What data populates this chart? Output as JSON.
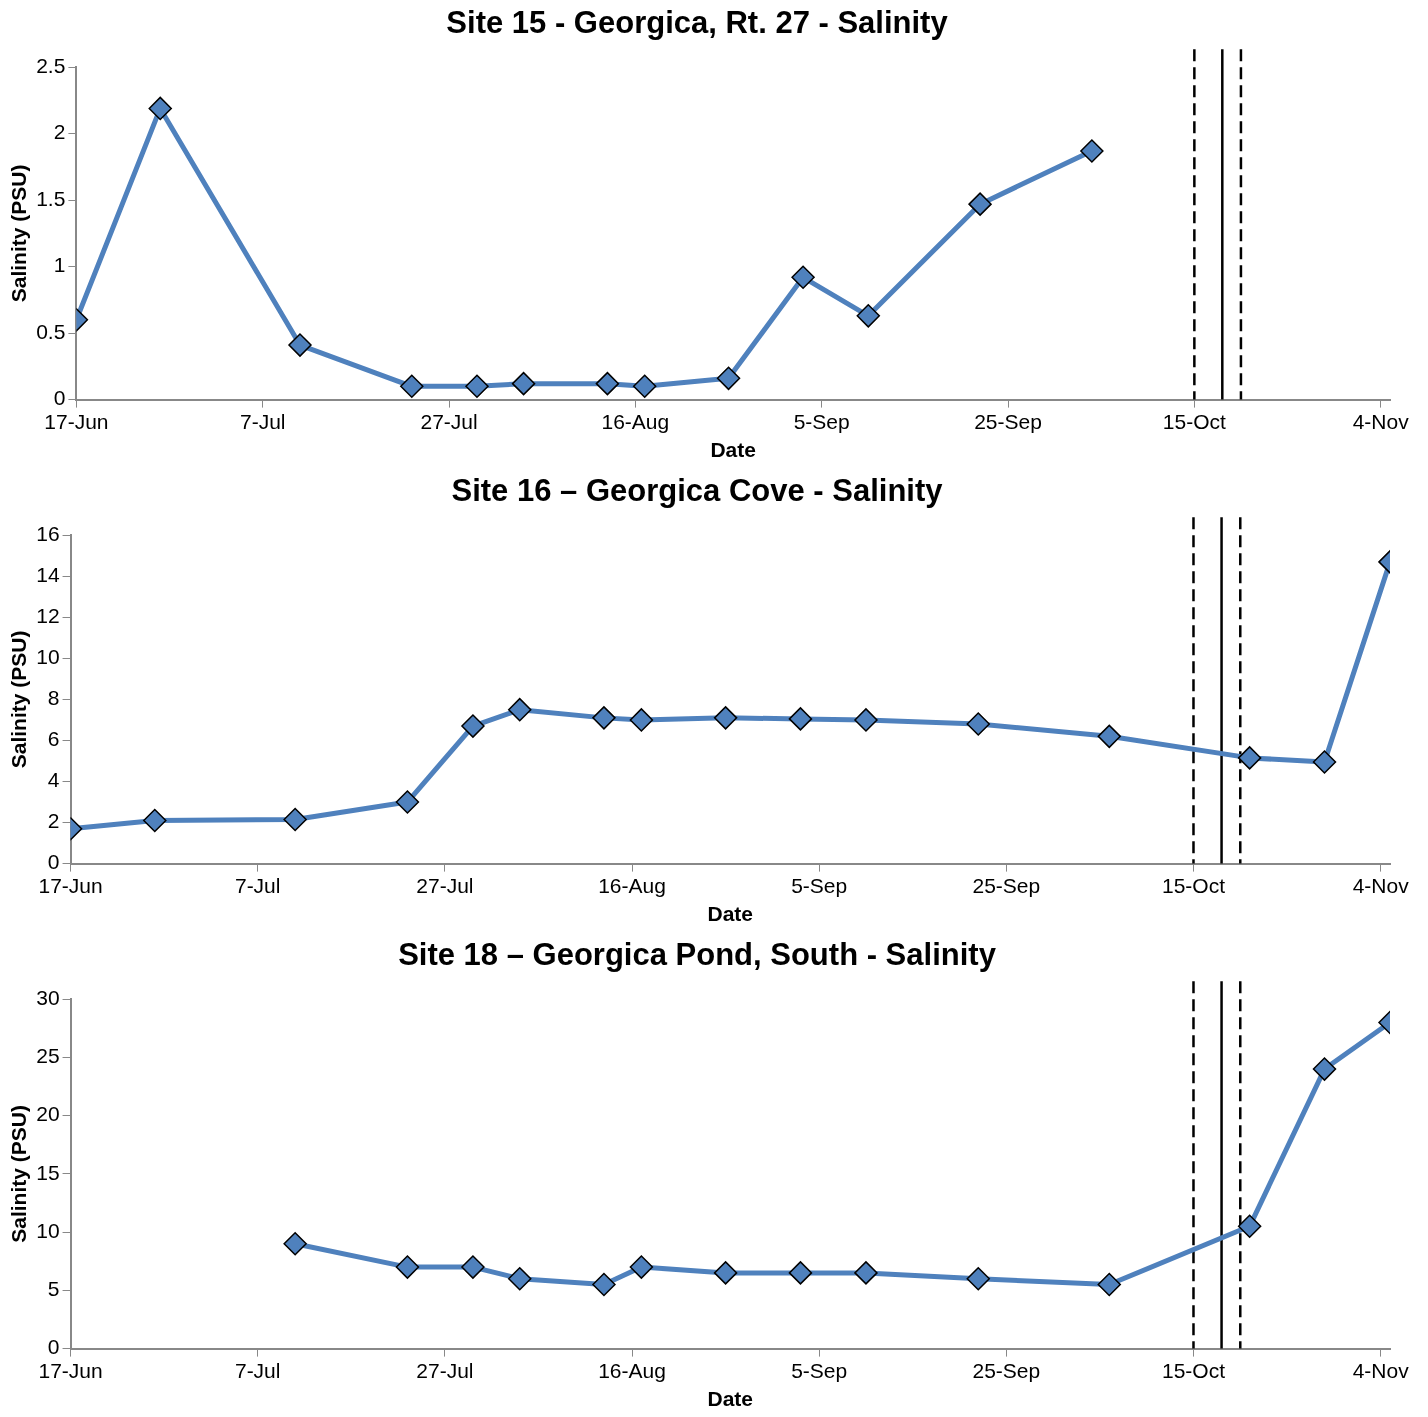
{
  "chart_data": [
    {
      "type": "line",
      "title": "Site 15 - Georgica, Rt. 27 - Salinity",
      "xlabel": "Date",
      "ylabel": "Salinity (PSU)",
      "x": [
        "--06-17",
        "--06-26",
        "--07-11",
        "--07-23",
        "--07-30",
        "--08-04",
        "--08-13",
        "--08-17",
        "--08-26",
        "--09-03",
        "--09-10",
        "--09-22",
        "--10-04"
      ],
      "series": [
        {
          "color": "#4f81bd",
          "values": [
            0.6,
            2.19,
            0.41,
            0.1,
            0.1,
            0.12,
            0.12,
            0.1,
            0.16,
            0.92,
            0.63,
            1.47,
            1.87
          ]
        }
      ],
      "xlim": [
        "--06-17",
        "--11-05"
      ],
      "xticks": [
        {
          "value": "--06-17",
          "label": "17-Jun"
        },
        {
          "value": "--07-07",
          "label": "7-Jul"
        },
        {
          "value": "--07-27",
          "label": "27-Jul"
        },
        {
          "value": "--08-16",
          "label": "16-Aug"
        },
        {
          "value": "--09-05",
          "label": "5-Sep"
        },
        {
          "value": "--09-25",
          "label": "25-Sep"
        },
        {
          "value": "--10-15",
          "label": "15-Oct"
        },
        {
          "value": "--11-04",
          "label": "4-Nov"
        }
      ],
      "ylim": [
        0,
        2.5
      ],
      "yticks": [
        0,
        0.5,
        1,
        1.5,
        2,
        2.5
      ],
      "ref_lines": [
        {
          "axis": "x",
          "value": "--10-15",
          "color": "#000000",
          "line_style": "dashed"
        },
        {
          "axis": "x",
          "value": "--10-18",
          "color": "#000000",
          "line_style": "solid"
        },
        {
          "axis": "x",
          "value": "--10-20",
          "color": "#000000",
          "line_style": "dashed"
        }
      ],
      "marker": "diamond",
      "line_style": "solid",
      "grid": false,
      "legend": false
    },
    {
      "type": "line",
      "title": "Site 16 – Georgica Cove - Salinity",
      "xlabel": "Date",
      "ylabel": "Salinity (PSU)",
      "x": [
        "--06-17",
        "--06-26",
        "--07-11",
        "--07-23",
        "--07-30",
        "--08-04",
        "--08-13",
        "--08-17",
        "--08-26",
        "--09-03",
        "--09-10",
        "--09-22",
        "--10-06",
        "--10-21",
        "--10-29",
        "--11-05"
      ],
      "series": [
        {
          "color": "#4f81bd",
          "values": [
            1.7,
            2.1,
            2.15,
            3.0,
            6.7,
            7.5,
            7.1,
            7.0,
            7.1,
            7.05,
            7.0,
            6.8,
            6.2,
            5.15,
            4.95,
            14.7
          ]
        }
      ],
      "xlim": [
        "--06-17",
        "--11-05"
      ],
      "xticks": [
        {
          "value": "--06-17",
          "label": "17-Jun"
        },
        {
          "value": "--07-07",
          "label": "7-Jul"
        },
        {
          "value": "--07-27",
          "label": "27-Jul"
        },
        {
          "value": "--08-16",
          "label": "16-Aug"
        },
        {
          "value": "--09-05",
          "label": "5-Sep"
        },
        {
          "value": "--09-25",
          "label": "25-Sep"
        },
        {
          "value": "--10-15",
          "label": "15-Oct"
        },
        {
          "value": "--11-04",
          "label": "4-Nov"
        }
      ],
      "ylim": [
        0,
        16
      ],
      "yticks": [
        0,
        2,
        4,
        6,
        8,
        10,
        12,
        14,
        16
      ],
      "ref_lines": [
        {
          "axis": "x",
          "value": "--10-15",
          "color": "#000000",
          "line_style": "dashed"
        },
        {
          "axis": "x",
          "value": "--10-18",
          "color": "#000000",
          "line_style": "solid"
        },
        {
          "axis": "x",
          "value": "--10-20",
          "color": "#000000",
          "line_style": "dashed"
        }
      ],
      "marker": "diamond",
      "line_style": "solid",
      "grid": false,
      "legend": false
    },
    {
      "type": "line",
      "title": "Site 18 – Georgica Pond, South - Salinity",
      "xlabel": "Date",
      "ylabel": "Salinity (PSU)",
      "x": [
        "--07-11",
        "--07-23",
        "--07-30",
        "--08-04",
        "--08-13",
        "--08-17",
        "--08-26",
        "--09-03",
        "--09-10",
        "--09-22",
        "--10-06",
        "--10-21",
        "--10-29",
        "--11-05"
      ],
      "series": [
        {
          "color": "#4f81bd",
          "values": [
            9,
            7,
            7,
            6,
            5.5,
            7,
            6.5,
            6.5,
            6.5,
            6,
            5.5,
            10.5,
            24,
            28
          ]
        }
      ],
      "xlim": [
        "--06-17",
        "--11-05"
      ],
      "xticks": [
        {
          "value": "--06-17",
          "label": "17-Jun"
        },
        {
          "value": "--07-07",
          "label": "7-Jul"
        },
        {
          "value": "--07-27",
          "label": "27-Jul"
        },
        {
          "value": "--08-16",
          "label": "16-Aug"
        },
        {
          "value": "--09-05",
          "label": "5-Sep"
        },
        {
          "value": "--09-25",
          "label": "25-Sep"
        },
        {
          "value": "--10-15",
          "label": "15-Oct"
        },
        {
          "value": "--11-04",
          "label": "4-Nov"
        }
      ],
      "ylim": [
        0,
        30
      ],
      "yticks": [
        0,
        5,
        10,
        15,
        20,
        25,
        30
      ],
      "ref_lines": [
        {
          "axis": "x",
          "value": "--10-15",
          "color": "#000000",
          "line_style": "dashed"
        },
        {
          "axis": "x",
          "value": "--10-18",
          "color": "#000000",
          "line_style": "solid"
        },
        {
          "axis": "x",
          "value": "--10-20",
          "color": "#000000",
          "line_style": "dashed"
        }
      ],
      "marker": "diamond",
      "line_style": "solid",
      "grid": false,
      "legend": false
    }
  ]
}
